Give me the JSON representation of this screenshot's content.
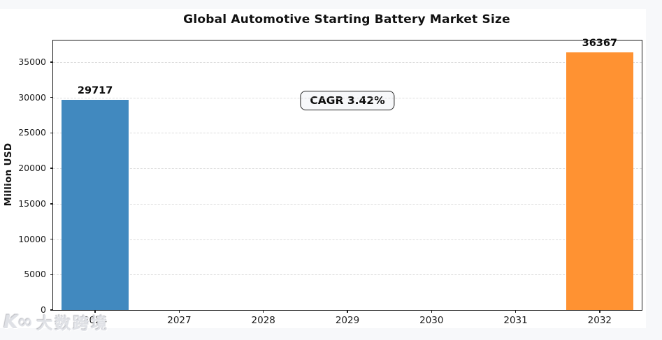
{
  "page": {
    "background": "#f7f8fa"
  },
  "chart_data": {
    "type": "bar",
    "title": "Global Automotive Starting Battery Market Size",
    "xlabel": "",
    "ylabel": "Million USD",
    "categories": [
      "2026",
      "2027",
      "2028",
      "2029",
      "2030",
      "2031",
      "2032"
    ],
    "values": [
      29717,
      null,
      null,
      null,
      null,
      null,
      36367
    ],
    "bar_colors": [
      "#4189bf",
      null,
      null,
      null,
      null,
      null,
      "#ff9232"
    ],
    "bar_labels": [
      "29717",
      null,
      null,
      null,
      null,
      null,
      "36367"
    ],
    "yticks": [
      0,
      5000,
      10000,
      15000,
      20000,
      25000,
      30000,
      35000
    ],
    "ylim": [
      0,
      38060
    ],
    "annotation": "CAGR 3.42%",
    "grid": "horizontal-dashed",
    "legend": "none"
  },
  "watermark": {
    "logo": "K∞",
    "text": "大数跨境"
  }
}
